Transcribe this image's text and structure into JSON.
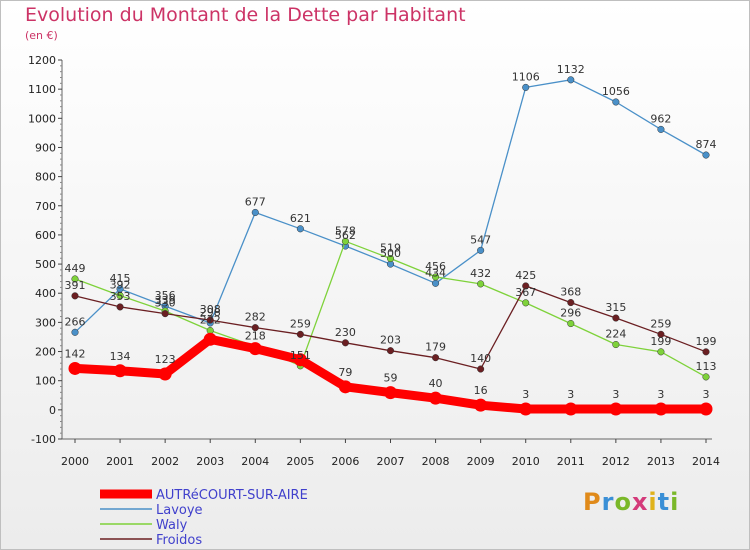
{
  "header": {
    "title": "Evolution du Montant de la Dette par Habitant",
    "subtitle": "(en €)"
  },
  "logo": {
    "text": "Proxiti",
    "letter_colors": [
      "#e08a1a",
      "#3a8fd6",
      "#7ab829",
      "#d43a7a",
      "#e0b21a",
      "#3a8fd6",
      "#7ab829"
    ]
  },
  "chart_data": {
    "type": "line",
    "title": "Evolution du Montant de la Dette par Habitant",
    "subtitle": "(en €)",
    "xlabel": "",
    "ylabel": "",
    "x": [
      "2000",
      "2001",
      "2002",
      "2003",
      "2004",
      "2005",
      "2006",
      "2007",
      "2008",
      "2009",
      "2010",
      "2011",
      "2012",
      "2013",
      "2014"
    ],
    "ylim": [
      -100,
      1200
    ],
    "yticks": [
      -100,
      0,
      100,
      200,
      300,
      400,
      500,
      600,
      700,
      800,
      900,
      1000,
      1100,
      1200
    ],
    "grid": false,
    "legend_position": "bottom-left",
    "series": [
      {
        "name": "AUTRéCOURT-SUR-AIRE",
        "color": "#ff0000",
        "emphasis": true,
        "values": [
          142,
          134,
          123,
          242,
          210,
          172,
          79,
          59,
          40,
          16,
          3,
          3,
          3,
          3,
          3
        ],
        "labels": [
          "142",
          "134",
          "123",
          "",
          "",
          "",
          "79",
          "59",
          "40",
          "16",
          "3",
          "3",
          "3",
          "3",
          "3"
        ]
      },
      {
        "name": "Lavoye",
        "color": "#4a90c8",
        "emphasis": false,
        "values": [
          266,
          415,
          356,
          298,
          677,
          621,
          562,
          500,
          434,
          547,
          1106,
          1132,
          1056,
          962,
          874
        ],
        "labels": [
          "266",
          "415",
          "356",
          "298",
          "677",
          "621",
          "562",
          "500",
          "434",
          "547",
          "1106",
          "1132",
          "1056",
          "962",
          "874"
        ]
      },
      {
        "name": "Waly",
        "color": "#7ed23a",
        "emphasis": false,
        "values": [
          449,
          392,
          339,
          272,
          218,
          151,
          578,
          519,
          456,
          432,
          367,
          296,
          224,
          199,
          113
        ],
        "labels": [
          "449",
          "392",
          "339",
          "272",
          "218",
          "151",
          "578",
          "519",
          "456",
          "432",
          "367",
          "296",
          "224",
          "199",
          "113"
        ]
      },
      {
        "name": "Froidos",
        "color": "#6b1f22",
        "emphasis": false,
        "values": [
          391,
          353,
          330,
          308,
          282,
          259,
          230,
          203,
          179,
          140,
          425,
          368,
          315,
          259,
          199
        ],
        "labels": [
          "391",
          "353",
          "330",
          "308",
          "282",
          "259",
          "230",
          "203",
          "179",
          "140",
          "425",
          "368",
          "315",
          "259",
          "199"
        ]
      }
    ]
  }
}
